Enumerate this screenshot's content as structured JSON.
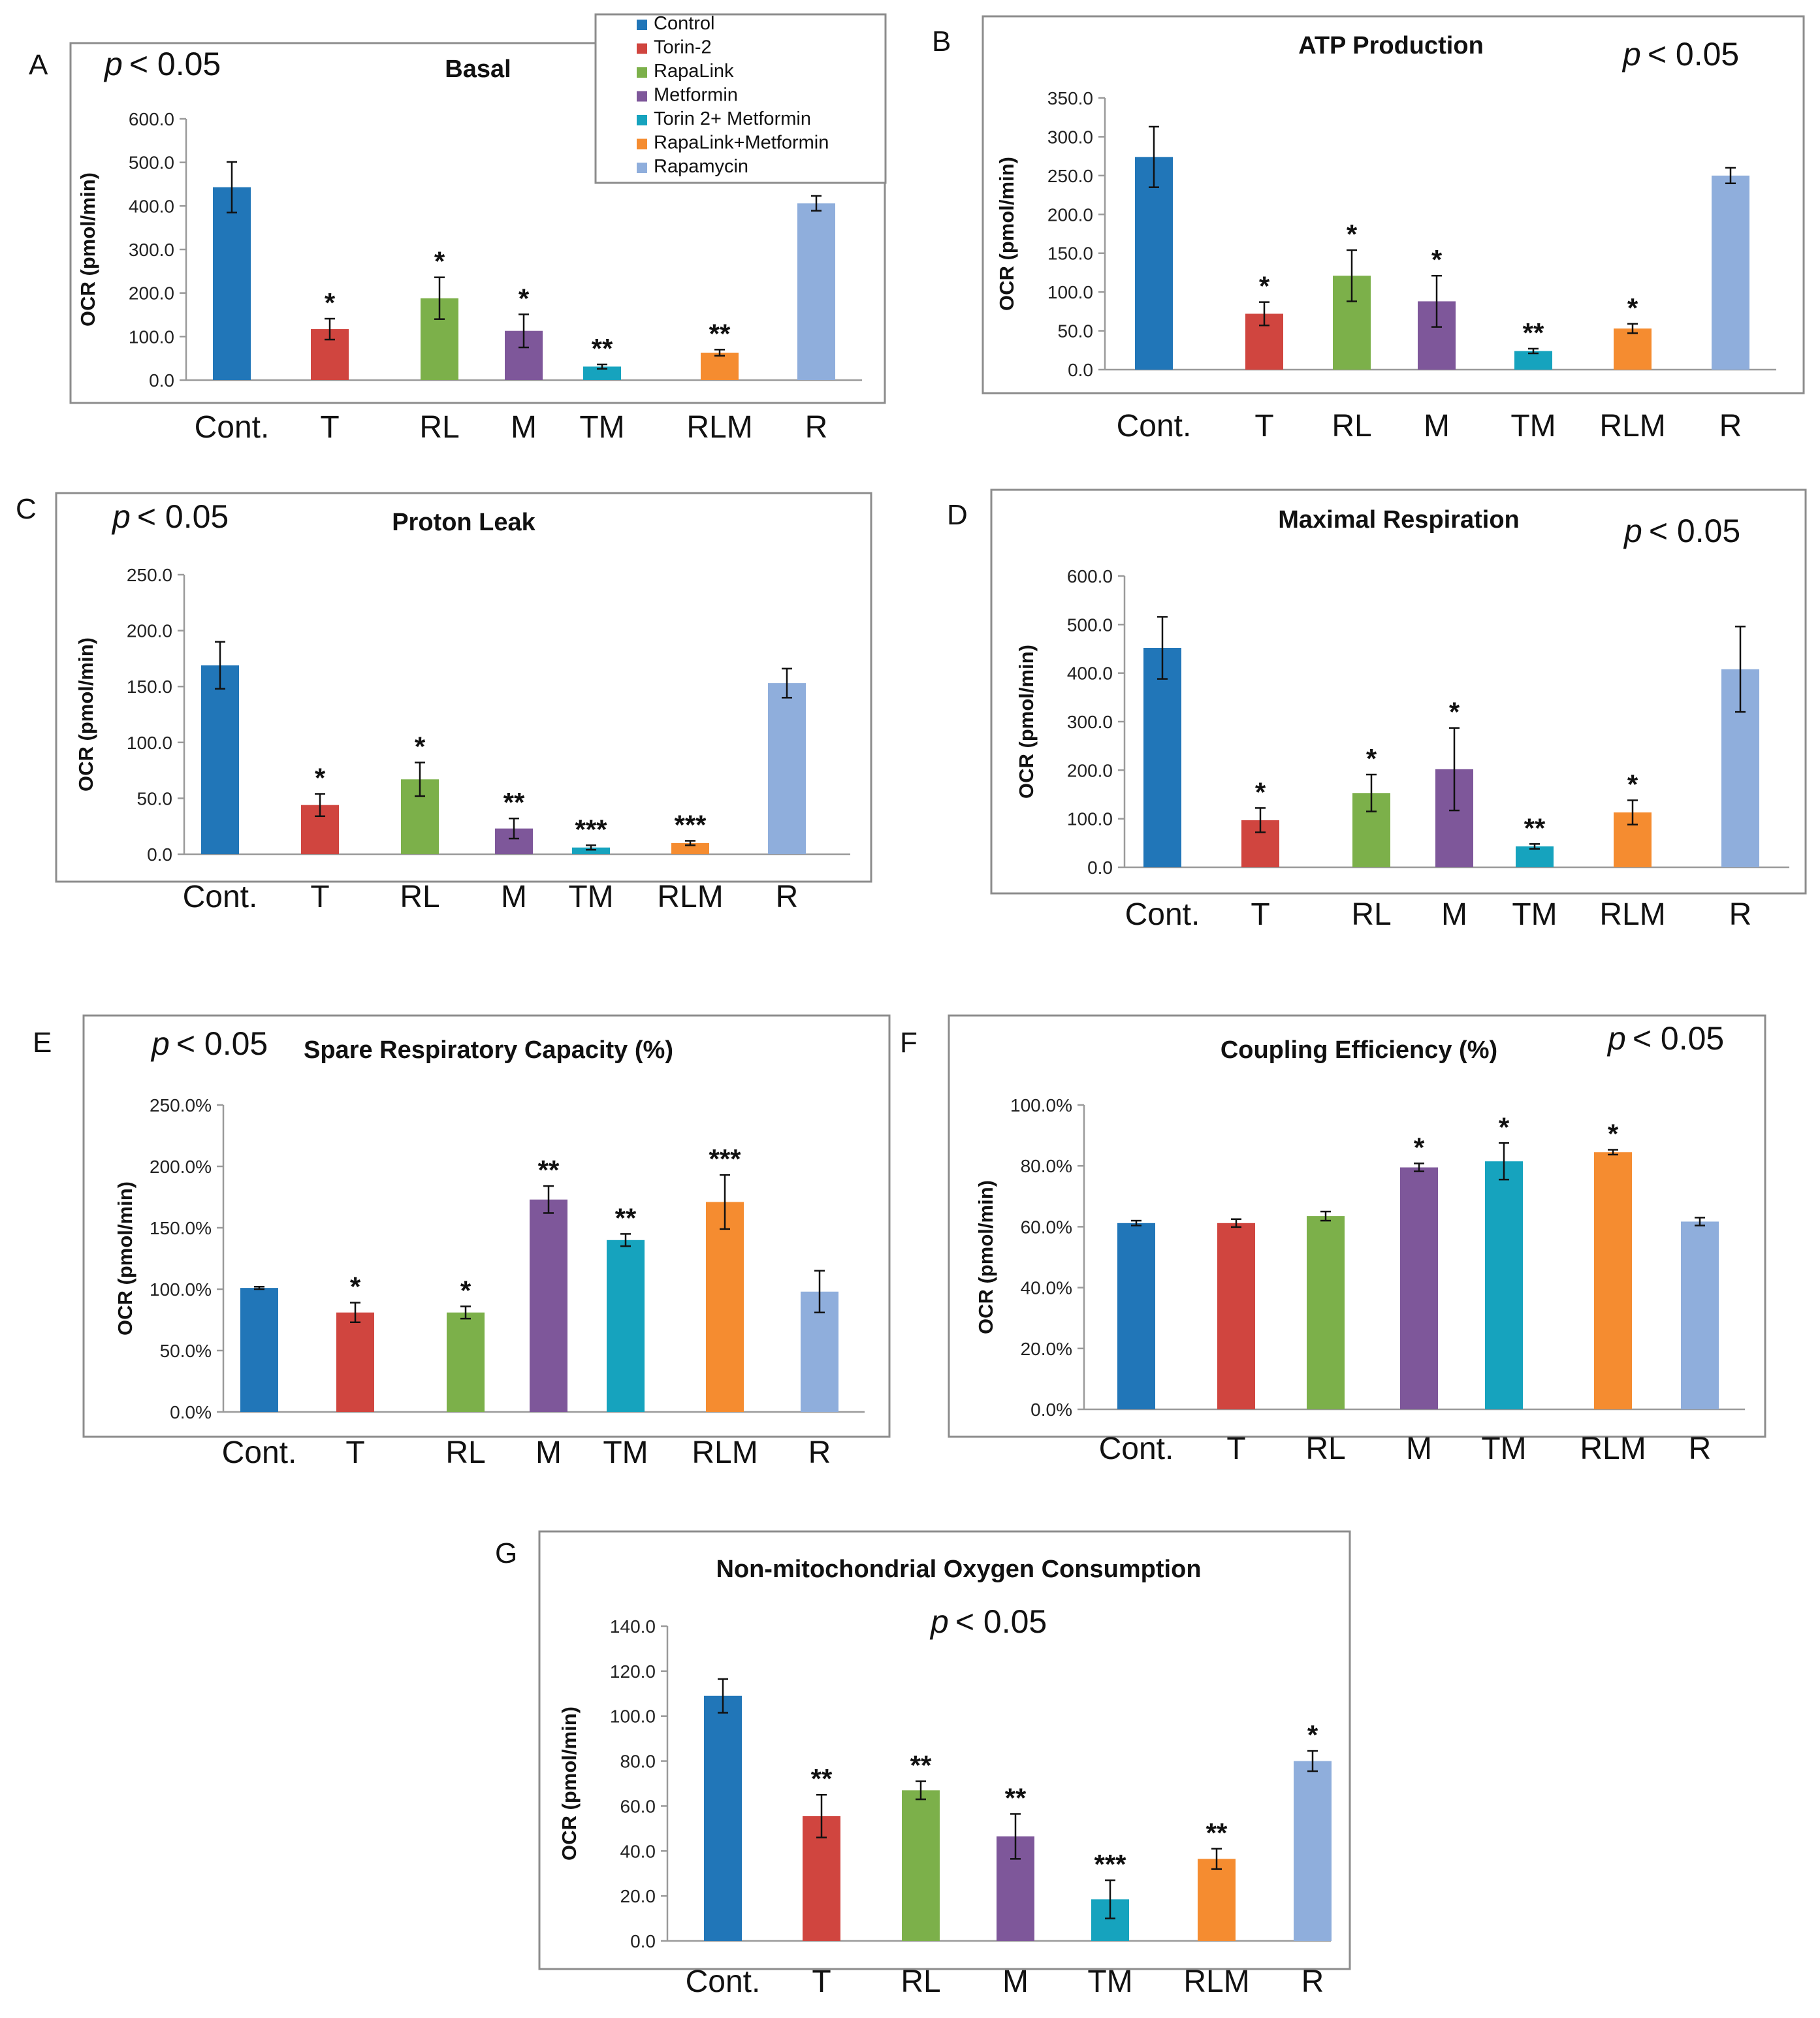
{
  "legend": {
    "items": [
      {
        "label": "Control",
        "color": "#2176b8"
      },
      {
        "label": "Torin-2",
        "color": "#d0453f"
      },
      {
        "label": "RapaLink",
        "color": "#7cb04a"
      },
      {
        "label": "Metformin",
        "color": "#7e579a"
      },
      {
        "label": "Torin 2+ Metformin",
        "color": "#16a3be"
      },
      {
        "label": "RapaLink+Metformin",
        "color": "#f58c30"
      },
      {
        "label": "Rapamycin",
        "color": "#8faedc"
      }
    ]
  },
  "p_prefix": "p",
  "p_suffix": "< 0.05",
  "chart_data": [
    {
      "panel": "A",
      "type": "bar",
      "title": "Basal",
      "ylabel": "OCR (pmol/min)",
      "categories": [
        "Cont.",
        "T",
        "RL",
        "M",
        "TM",
        "RLM",
        "R"
      ],
      "values": [
        443,
        117,
        188,
        113,
        31,
        63,
        406
      ],
      "errors": [
        58,
        24,
        48,
        38,
        5,
        7,
        17
      ],
      "stars": [
        "",
        "*",
        "*",
        "*",
        "**",
        "**",
        ""
      ],
      "ylim": [
        0,
        600
      ],
      "yticks": [
        "0.0",
        "100.0",
        "200.0",
        "300.0",
        "400.0",
        "500.0",
        "600.0"
      ]
    },
    {
      "panel": "B",
      "type": "bar",
      "title": "ATP Production",
      "ylabel": "OCR (pmol/min)",
      "categories": [
        "Cont.",
        "T",
        "RL",
        "M",
        "TM",
        "RLM",
        "R"
      ],
      "values": [
        274,
        72,
        121,
        88,
        24,
        53,
        250
      ],
      "errors": [
        39,
        15,
        33,
        33,
        3,
        6,
        10
      ],
      "stars": [
        "",
        "*",
        "*",
        "*",
        "**",
        "*",
        ""
      ],
      "ylim": [
        0,
        350
      ],
      "yticks": [
        "0.0",
        "50.0",
        "100.0",
        "150.0",
        "200.0",
        "250.0",
        "300.0",
        "350.0"
      ]
    },
    {
      "panel": "C",
      "type": "bar",
      "title": "Proton Leak",
      "ylabel": "OCR (pmol/min)",
      "categories": [
        "Cont.",
        "T",
        "RL",
        "M",
        "TM",
        "RLM",
        "R"
      ],
      "values": [
        169,
        44,
        67,
        23,
        6,
        10,
        153
      ],
      "errors": [
        21,
        10,
        15,
        9,
        2,
        2,
        13
      ],
      "stars": [
        "",
        "*",
        "*",
        "**",
        "***",
        "***",
        ""
      ],
      "ylim": [
        0,
        250
      ],
      "yticks": [
        "0.0",
        "50.0",
        "100.0",
        "150.0",
        "200.0",
        "250.0"
      ]
    },
    {
      "panel": "D",
      "type": "bar",
      "title": "Maximal Respiration",
      "ylabel": "OCR (pmol/min)",
      "categories": [
        "Cont.",
        "T",
        "RL",
        "M",
        "TM",
        "RLM",
        "R"
      ],
      "values": [
        452,
        97,
        153,
        202,
        43,
        113,
        408
      ],
      "errors": [
        64,
        25,
        38,
        85,
        5,
        25,
        88
      ],
      "stars": [
        "",
        "*",
        "*",
        "*",
        "**",
        "*",
        ""
      ],
      "ylim": [
        0,
        600
      ],
      "yticks": [
        "0.0",
        "100.0",
        "200.0",
        "300.0",
        "400.0",
        "500.0",
        "600.0"
      ]
    },
    {
      "panel": "E",
      "type": "bar",
      "title": "Spare Respiratory Capacity (%)",
      "ylabel": "OCR (pmol/min)",
      "categories": [
        "Cont.",
        "T",
        "RL",
        "M",
        "TM",
        "RLM",
        "R"
      ],
      "values": [
        101,
        81,
        81,
        173,
        140,
        171,
        98
      ],
      "errors": [
        1,
        8,
        5,
        11,
        5,
        22,
        17
      ],
      "stars": [
        "",
        "*",
        "*",
        "**",
        "**",
        "***",
        ""
      ],
      "ylim": [
        0,
        250
      ],
      "yticks": [
        "0.0%",
        "50.0%",
        "100.0%",
        "150.0%",
        "200.0%",
        "250.0%"
      ]
    },
    {
      "panel": "F",
      "type": "bar",
      "title": "Coupling Efficiency (%)",
      "ylabel": "OCR (pmol/min)",
      "categories": [
        "Cont.",
        "T",
        "RL",
        "M",
        "TM",
        "RLM",
        "R"
      ],
      "values": [
        61.2,
        61.2,
        63.5,
        79.5,
        81.5,
        84.5,
        61.7
      ],
      "errors": [
        0.8,
        1.3,
        1.5,
        1.3,
        6.0,
        0.8,
        1.3
      ],
      "stars": [
        "",
        "",
        "",
        "*",
        "*",
        "*",
        ""
      ],
      "ylim": [
        0,
        100
      ],
      "yticks": [
        "0.0%",
        "20.0%",
        "40.0%",
        "60.0%",
        "80.0%",
        "100.0%"
      ]
    },
    {
      "panel": "G",
      "type": "bar",
      "title": "Non-mitochondrial Oxygen Consumption",
      "ylabel": "OCR (pmol/min)",
      "categories": [
        "Cont.",
        "T",
        "RL",
        "M",
        "TM",
        "RLM",
        "R"
      ],
      "values": [
        109,
        55.5,
        67,
        46.5,
        18.5,
        36.5,
        80
      ],
      "errors": [
        7.5,
        9.5,
        4,
        10,
        8.5,
        4.5,
        4.5
      ],
      "stars": [
        "",
        "**",
        "**",
        "**",
        "***",
        "**",
        "*"
      ],
      "ylim": [
        0,
        140
      ],
      "yticks": [
        "0.0",
        "20.0",
        "40.0",
        "60.0",
        "80.0",
        "100.0",
        "120.0",
        "140.0"
      ]
    }
  ]
}
